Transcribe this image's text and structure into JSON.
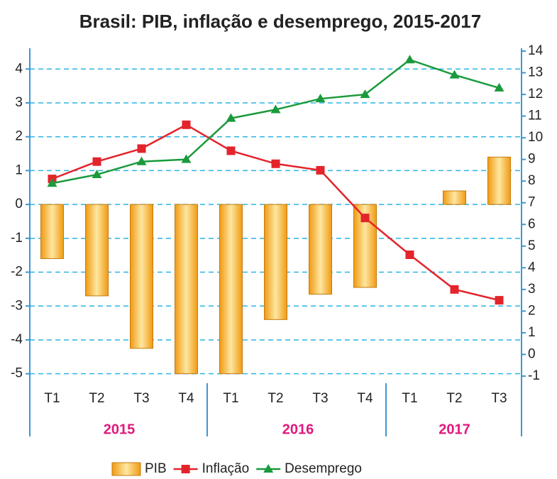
{
  "chart_data": {
    "type": "bar",
    "title": "Brasil: PIB, inflação e desemprego, 2015-2017",
    "groups": [
      {
        "name": "2015",
        "categories": [
          "T1",
          "T2",
          "T3",
          "T4"
        ]
      },
      {
        "name": "2016",
        "categories": [
          "T1",
          "T2",
          "T3",
          "T4"
        ]
      },
      {
        "name": "2017",
        "categories": [
          "T1",
          "T2",
          "T3"
        ]
      }
    ],
    "series": [
      {
        "name": "PIB",
        "type": "bar",
        "color": "#f5a21c",
        "values": [
          -1.6,
          -2.7,
          -4.25,
          -5.0,
          -5.0,
          -3.4,
          -2.65,
          -2.45,
          0,
          0.4,
          1.4
        ]
      },
      {
        "name": "Inflação",
        "type": "line",
        "axis": "y2",
        "marker": "square",
        "color": "#e3242b",
        "values": [
          8.1,
          8.9,
          9.5,
          10.6,
          9.4,
          8.8,
          8.5,
          6.3,
          4.6,
          3.0,
          2.5
        ]
      },
      {
        "name": "Desemprego",
        "type": "line",
        "axis": "y2",
        "marker": "triangle",
        "color": "#1a9a3c",
        "values": [
          7.9,
          8.3,
          8.9,
          9.0,
          10.9,
          11.3,
          11.8,
          12.0,
          13.6,
          12.9,
          12.3
        ]
      }
    ],
    "ylim": [
      -5.07,
      4.53
    ],
    "yticks": [
      -5,
      -4,
      -3,
      -2,
      -1,
      0,
      1,
      2,
      3,
      4
    ],
    "y2lim": [
      -1,
      14
    ],
    "y2ticks": [
      -1,
      0,
      1,
      2,
      3,
      4,
      5,
      6,
      7,
      8,
      9,
      10,
      11,
      12,
      13,
      14
    ],
    "grid": true
  }
}
